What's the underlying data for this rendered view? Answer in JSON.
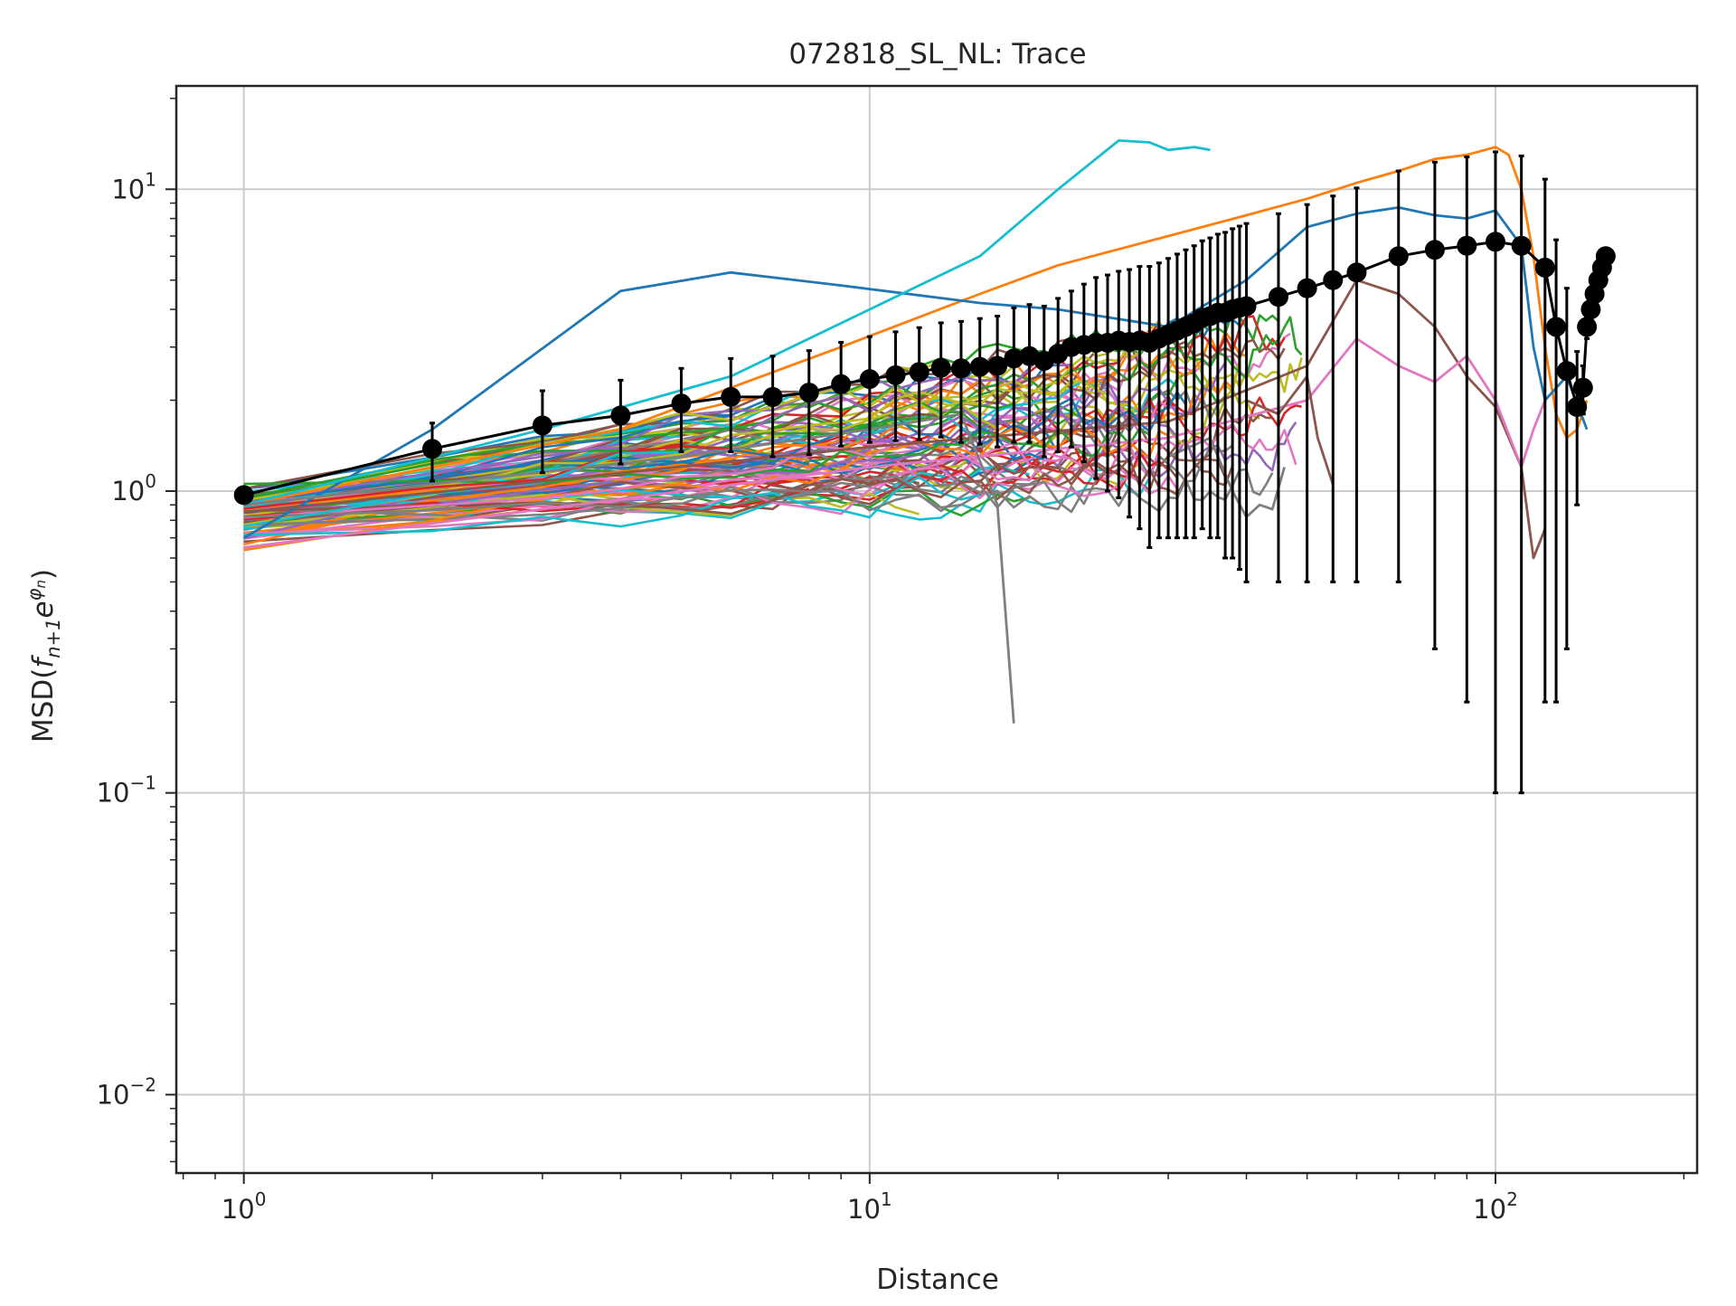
{
  "chart_data": {
    "type": "line",
    "title": "072818_SL_NL: Trace",
    "xlabel": "Distance",
    "ylabel_prefix": "MSD(",
    "ylabel_math": "f",
    "ylabel_sub": "n+1",
    "ylabel_mid": "e",
    "ylabel_sup_base": "φ",
    "ylabel_sup_sub": "n",
    "ylabel_suffix": ")",
    "xscale": "log",
    "yscale": "log",
    "xlim": [
      0.78,
      210
    ],
    "ylim": [
      0.0055,
      22
    ],
    "grid": true,
    "xticks": [
      {
        "value": 1,
        "base": "10",
        "exp": "0"
      },
      {
        "value": 10,
        "base": "10",
        "exp": "1"
      },
      {
        "value": 100,
        "base": "10",
        "exp": "2"
      }
    ],
    "yticks": [
      {
        "value": 0.01,
        "base": "10",
        "exp": "−2"
      },
      {
        "value": 0.1,
        "base": "10",
        "exp": "−1"
      },
      {
        "value": 1,
        "base": "10",
        "exp": "0"
      },
      {
        "value": 10,
        "base": "10",
        "exp": "1"
      }
    ],
    "palette": [
      "#1f77b4",
      "#ff7f0e",
      "#2ca02c",
      "#d62728",
      "#9467bd",
      "#8c564b",
      "#e377c2",
      "#7f7f7f",
      "#bcbd22",
      "#17becf"
    ],
    "individual_traces": {
      "count": 100,
      "note_value_at_x1": "approximately 0.65-1.0",
      "highlighted": [
        {
          "color": "#ff7f0e",
          "x": [
            1,
            2,
            4,
            6,
            9,
            15,
            20,
            30,
            40,
            50,
            60,
            70,
            80,
            90,
            100,
            105,
            110,
            115,
            120,
            125,
            130,
            135,
            140
          ],
          "y": [
            0.9,
            1.2,
            1.6,
            2.2,
            3.0,
            4.5,
            5.6,
            7.0,
            8.2,
            9.3,
            10.5,
            11.5,
            12.6,
            13.0,
            13.8,
            13.0,
            10.0,
            6.0,
            3.0,
            1.8,
            1.5,
            1.6,
            2.0
          ]
        },
        {
          "color": "#1f77b4",
          "x": [
            1,
            2,
            4,
            6,
            9,
            15,
            20,
            30,
            40,
            50,
            60,
            70,
            80,
            90,
            100,
            110,
            115,
            120,
            130,
            140
          ],
          "y": [
            0.7,
            1.6,
            4.6,
            5.3,
            4.8,
            4.2,
            4.0,
            3.5,
            5.0,
            7.5,
            8.3,
            8.7,
            8.2,
            8.0,
            8.5,
            6.5,
            3.0,
            2.0,
            2.4,
            1.6
          ]
        },
        {
          "color": "#17becf",
          "x": [
            1,
            3,
            6,
            10,
            15,
            20,
            25,
            28,
            30,
            33,
            35
          ],
          "y": [
            0.9,
            1.6,
            2.4,
            4.0,
            6.0,
            10.0,
            14.5,
            14.3,
            13.5,
            13.8,
            13.5
          ]
        },
        {
          "color": "#8c564b",
          "x": [
            1,
            10,
            30,
            50,
            60,
            70,
            80,
            90,
            100,
            110,
            115,
            120
          ],
          "y": [
            0.85,
            1.4,
            1.7,
            2.6,
            5.0,
            4.5,
            3.5,
            2.4,
            1.9,
            1.2,
            0.6,
            0.75
          ]
        },
        {
          "color": "#e377c2",
          "x": [
            1,
            10,
            30,
            50,
            60,
            70,
            80,
            90,
            100,
            110,
            115,
            120
          ],
          "y": [
            0.65,
            1.2,
            1.5,
            2.0,
            3.2,
            2.6,
            2.3,
            2.8,
            2.0,
            1.2,
            1.6,
            2.0
          ]
        },
        {
          "color": "#7f7f7f",
          "x": [
            1,
            5,
            10,
            14,
            16,
            17
          ],
          "y": [
            0.9,
            1.3,
            1.6,
            1.8,
            0.9,
            0.17
          ]
        },
        {
          "color": "#7f7f7f",
          "x": [
            30,
            35,
            38,
            40,
            42,
            44,
            46
          ],
          "y": [
            1.3,
            1.5,
            1.0,
            0.82,
            0.9,
            0.87,
            1.2
          ]
        },
        {
          "color": "#8c564b",
          "x": [
            40,
            45,
            50,
            52,
            55
          ],
          "y": [
            2.0,
            1.8,
            2.4,
            1.5,
            1.05
          ]
        }
      ]
    },
    "series": [
      {
        "name": "",
        "color": "#000000",
        "marker": "circle",
        "x": [
          1,
          2,
          3,
          4,
          5,
          6,
          7,
          8,
          9,
          10,
          11,
          12,
          13,
          14,
          15,
          16,
          17,
          18,
          19,
          20,
          21,
          22,
          23,
          24,
          25,
          26,
          27,
          28,
          29,
          30,
          31,
          32,
          33,
          34,
          35,
          36,
          37,
          38,
          39,
          40,
          45,
          50,
          55,
          60,
          70,
          80,
          90,
          100,
          110,
          120,
          125,
          130,
          135,
          138,
          140,
          142,
          144,
          146,
          148,
          150
        ],
        "y": [
          0.97,
          1.38,
          1.65,
          1.78,
          1.95,
          2.05,
          2.05,
          2.12,
          2.26,
          2.35,
          2.42,
          2.48,
          2.56,
          2.55,
          2.58,
          2.6,
          2.75,
          2.8,
          2.7,
          2.85,
          3.0,
          3.05,
          3.1,
          3.1,
          3.15,
          3.12,
          3.15,
          3.1,
          3.2,
          3.3,
          3.4,
          3.5,
          3.6,
          3.75,
          3.8,
          3.9,
          3.9,
          4.0,
          4.05,
          4.1,
          4.4,
          4.7,
          5.0,
          5.3,
          6.0,
          6.3,
          6.5,
          6.7,
          6.5,
          5.5,
          3.5,
          2.5,
          1.9,
          2.2,
          3.5,
          4.0,
          4.5,
          5.0,
          5.5,
          6.0
        ],
        "yerr_lower": [
          0.0,
          0.3,
          0.5,
          0.55,
          0.6,
          0.7,
          0.75,
          0.8,
          0.85,
          0.9,
          0.95,
          1.0,
          1.05,
          1.1,
          1.15,
          1.2,
          1.3,
          1.35,
          1.4,
          1.5,
          1.6,
          1.8,
          2.0,
          2.1,
          2.2,
          2.3,
          2.4,
          2.45,
          2.5,
          2.6,
          2.7,
          2.8,
          2.9,
          3.0,
          3.1,
          3.2,
          3.3,
          3.4,
          3.5,
          3.6,
          3.9,
          4.2,
          4.5,
          4.8,
          5.5,
          6.0,
          6.3,
          6.6,
          6.4,
          5.3,
          3.3,
          2.2,
          1.0,
          0.4,
          0.3,
          0.3,
          0.3,
          0.3,
          0.3,
          0.3
        ],
        "yerr_upper": [
          0.0,
          0.3,
          0.5,
          0.55,
          0.6,
          0.7,
          0.75,
          0.8,
          0.85,
          0.9,
          0.95,
          1.0,
          1.05,
          1.1,
          1.15,
          1.2,
          1.3,
          1.35,
          1.4,
          1.5,
          1.6,
          1.8,
          2.0,
          2.1,
          2.2,
          2.3,
          2.4,
          2.45,
          2.5,
          2.6,
          2.7,
          2.8,
          2.9,
          3.0,
          3.1,
          3.2,
          3.3,
          3.4,
          3.5,
          3.6,
          3.9,
          4.2,
          4.5,
          4.8,
          5.5,
          6.0,
          6.3,
          6.6,
          6.4,
          5.3,
          3.3,
          2.2,
          1.0,
          0.4,
          0.3,
          0.3,
          0.3,
          0.3,
          0.3,
          0.3
        ]
      }
    ]
  }
}
